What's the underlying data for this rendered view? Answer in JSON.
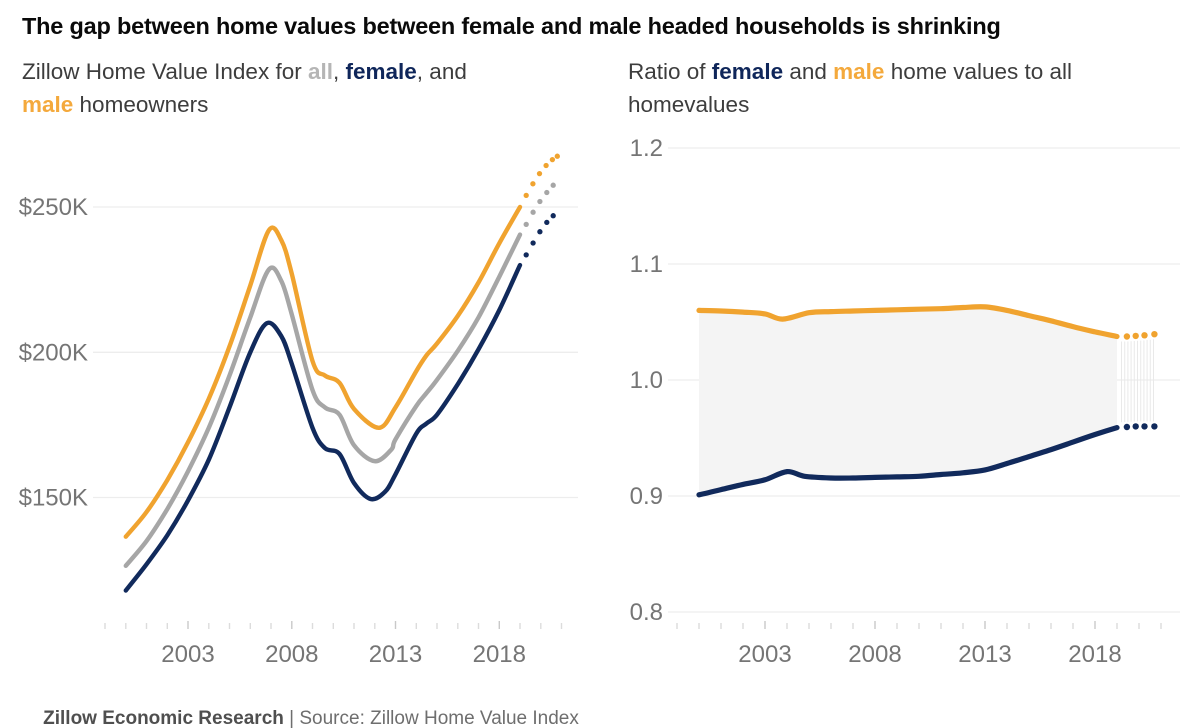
{
  "title": "The gap between home values between female and male headed households is shrinking",
  "colors": {
    "all": "#a6a6a6",
    "female": "#112a5c",
    "male": "#f0a32f",
    "all_text": "#b5b5b5",
    "female_text": "#0f265a",
    "male_text": "#f4a93c",
    "grid": "#ededed",
    "tick": "#dcdcdc",
    "tick_major": "#c9c9c9",
    "band_fill": "#f4f4f4",
    "hatch": "#e9e9e9",
    "axis_label": "#757575"
  },
  "footer": {
    "brand": "Zillow Economic Research",
    "divider": " | ",
    "source": "Source: Zillow Home Value Index"
  },
  "chart_data": [
    {
      "type": "line",
      "name": "zhvi-by-household-head",
      "unit": "USD",
      "subtitle_segments": [
        {
          "text": "Zillow Home Value Index for ",
          "style": "normal"
        },
        {
          "text": "all",
          "style": "all"
        },
        {
          "text": ", ",
          "style": "normal"
        },
        {
          "text": "female",
          "style": "female"
        },
        {
          "text": ", and",
          "style": "normal"
        },
        {
          "br": true
        },
        {
          "text": "male",
          "style": "male"
        },
        {
          "text": " homeowners",
          "style": "normal"
        }
      ],
      "x_ticks": [
        {
          "label": "2003",
          "value": 2003
        },
        {
          "label": "2008",
          "value": 2008
        },
        {
          "label": "2013",
          "value": 2013
        },
        {
          "label": "2018",
          "value": 2018
        }
      ],
      "y_ticks": [
        {
          "label": "$250K",
          "value": 250000
        },
        {
          "label": "$200K",
          "value": 200000
        },
        {
          "label": "$150K",
          "value": 150000
        }
      ],
      "minor_ticks": {
        "from": 1999,
        "to": 2021,
        "step": 1
      },
      "xlim": [
        1999.6,
        2021.4
      ],
      "ylim": [
        105000,
        273000
      ],
      "grid": "horizontal",
      "legend": "inline-in-subtitle",
      "series": [
        {
          "name": "all",
          "color_key": "all",
          "solid": [
            [
              2000,
              126500
            ],
            [
              2001,
              135000
            ],
            [
              2002,
              146000
            ],
            [
              2003,
              159000
            ],
            [
              2004,
              174000
            ],
            [
              2005,
              192000
            ],
            [
              2006,
              212000
            ],
            [
              2006.9,
              228500
            ],
            [
              2007.5,
              224500
            ],
            [
              2008,
              213000
            ],
            [
              2009,
              187000
            ],
            [
              2009.6,
              181000
            ],
            [
              2010.3,
              178500
            ],
            [
              2011,
              168000
            ],
            [
              2012,
              162500
            ],
            [
              2012.8,
              166500
            ],
            [
              2013,
              170000
            ],
            [
              2014,
              181500
            ],
            [
              2014.5,
              186000
            ],
            [
              2015,
              190500
            ],
            [
              2016,
              200500
            ],
            [
              2017,
              212000
            ],
            [
              2018,
              226000
            ],
            [
              2019,
              240500
            ]
          ],
          "forecast": [
            [
              2019.3,
              244000
            ],
            [
              2019.63,
              248200
            ],
            [
              2019.96,
              251900
            ],
            [
              2020.29,
              255000
            ],
            [
              2020.6,
              257500
            ]
          ]
        },
        {
          "name": "female",
          "color_key": "female",
          "solid": [
            [
              2000,
              118000
            ],
            [
              2001,
              127000
            ],
            [
              2002,
              137000
            ],
            [
              2003,
              149000
            ],
            [
              2004,
              163000
            ],
            [
              2005,
              181000
            ],
            [
              2006,
              200000
            ],
            [
              2006.8,
              210000
            ],
            [
              2007.5,
              205500
            ],
            [
              2008,
              196000
            ],
            [
              2009,
              174000
            ],
            [
              2009.6,
              167000
            ],
            [
              2010.3,
              165000
            ],
            [
              2011,
              155000
            ],
            [
              2011.8,
              149500
            ],
            [
              2012.5,
              152000
            ],
            [
              2013,
              158000
            ],
            [
              2014,
              172000
            ],
            [
              2014.5,
              175500
            ],
            [
              2015,
              178500
            ],
            [
              2016,
              189000
            ],
            [
              2017,
              201000
            ],
            [
              2018,
              214500
            ],
            [
              2019,
              230000
            ]
          ],
          "forecast": [
            [
              2019.3,
              233500
            ],
            [
              2019.63,
              237600
            ],
            [
              2019.96,
              241500
            ],
            [
              2020.29,
              244700
            ],
            [
              2020.6,
              247000
            ]
          ]
        },
        {
          "name": "male",
          "color_key": "male",
          "solid": [
            [
              2000,
              136500
            ],
            [
              2001,
              145000
            ],
            [
              2002,
              156000
            ],
            [
              2003,
              169000
            ],
            [
              2004,
              184000
            ],
            [
              2005,
              202000
            ],
            [
              2006,
              223000
            ],
            [
              2006.9,
              242000
            ],
            [
              2007.5,
              238500
            ],
            [
              2008,
              227000
            ],
            [
              2009,
              197000
            ],
            [
              2009.6,
              192000
            ],
            [
              2010.3,
              189500
            ],
            [
              2011,
              180500
            ],
            [
              2012.2,
              174000
            ],
            [
              2013,
              181000
            ],
            [
              2014,
              193500
            ],
            [
              2014.5,
              199000
            ],
            [
              2015,
              203000
            ],
            [
              2016,
              212500
            ],
            [
              2017,
              224000
            ],
            [
              2018,
              237500
            ],
            [
              2019,
              250000
            ]
          ],
          "forecast": [
            [
              2019.3,
              254000
            ],
            [
              2019.62,
              258000
            ],
            [
              2019.94,
              261500
            ],
            [
              2020.26,
              264300
            ],
            [
              2020.56,
              266300
            ],
            [
              2020.8,
              267500
            ]
          ]
        }
      ]
    },
    {
      "type": "line",
      "name": "ratio-to-all-home-values",
      "unit": "ratio",
      "subtitle_segments": [
        {
          "text": "Ratio of ",
          "style": "normal"
        },
        {
          "text": "female",
          "style": "female"
        },
        {
          "text": " and ",
          "style": "normal"
        },
        {
          "text": "male",
          "style": "male"
        },
        {
          "text": " home values to all",
          "style": "normal"
        },
        {
          "br": true
        },
        {
          "text": "homevalues",
          "style": "normal"
        }
      ],
      "x_ticks": [
        {
          "label": "2003",
          "value": 2003
        },
        {
          "label": "2008",
          "value": 2008
        },
        {
          "label": "2013",
          "value": 2013
        },
        {
          "label": "2018",
          "value": 2018
        }
      ],
      "y_ticks": [
        {
          "label": "1.2",
          "value": 1.2
        },
        {
          "label": "1.1",
          "value": 1.1
        },
        {
          "label": "1.0",
          "value": 1.0
        },
        {
          "label": "0.9",
          "value": 0.9
        },
        {
          "label": "0.8",
          "value": 0.8
        }
      ],
      "minor_ticks": {
        "from": 1999,
        "to": 2021,
        "step": 1
      },
      "xlim": [
        1999.6,
        2021.4
      ],
      "ylim": [
        0.785,
        1.21
      ],
      "grid": "horizontal",
      "fill_between": [
        "male",
        "female"
      ],
      "series": [
        {
          "name": "male",
          "color_key": "male",
          "solid": [
            [
              2000,
              1.06
            ],
            [
              2001,
              1.0595
            ],
            [
              2002,
              1.0585
            ],
            [
              2003,
              1.057
            ],
            [
              2003.8,
              1.0525
            ],
            [
              2005,
              1.058
            ],
            [
              2006,
              1.059
            ],
            [
              2007,
              1.0595
            ],
            [
              2008,
              1.06
            ],
            [
              2009,
              1.0605
            ],
            [
              2010,
              1.061
            ],
            [
              2011,
              1.0615
            ],
            [
              2012,
              1.0625
            ],
            [
              2013,
              1.063
            ],
            [
              2014,
              1.06
            ],
            [
              2015,
              1.0555
            ],
            [
              2016,
              1.051
            ],
            [
              2017,
              1.046
            ],
            [
              2018,
              1.0415
            ],
            [
              2019,
              1.0375
            ]
          ],
          "forecast": [
            [
              2019.45,
              1.0375
            ],
            [
              2019.85,
              1.038
            ],
            [
              2020.25,
              1.0385
            ],
            [
              2020.7,
              1.0395
            ]
          ]
        },
        {
          "name": "female",
          "color_key": "female",
          "solid": [
            [
              2000,
              0.901
            ],
            [
              2001,
              0.9055
            ],
            [
              2002,
              0.91
            ],
            [
              2003,
              0.914
            ],
            [
              2004,
              0.921
            ],
            [
              2004.8,
              0.917
            ],
            [
              2006,
              0.9155
            ],
            [
              2007,
              0.9155
            ],
            [
              2008,
              0.916
            ],
            [
              2009,
              0.9165
            ],
            [
              2010,
              0.917
            ],
            [
              2011,
              0.9185
            ],
            [
              2012,
              0.92
            ],
            [
              2013,
              0.9225
            ],
            [
              2014,
              0.928
            ],
            [
              2015,
              0.934
            ],
            [
              2016,
              0.94
            ],
            [
              2017,
              0.9465
            ],
            [
              2018,
              0.953
            ],
            [
              2019,
              0.959
            ]
          ],
          "forecast": [
            [
              2019.45,
              0.9595
            ],
            [
              2019.85,
              0.96
            ],
            [
              2020.25,
              0.96
            ],
            [
              2020.7,
              0.96
            ]
          ]
        }
      ]
    }
  ]
}
